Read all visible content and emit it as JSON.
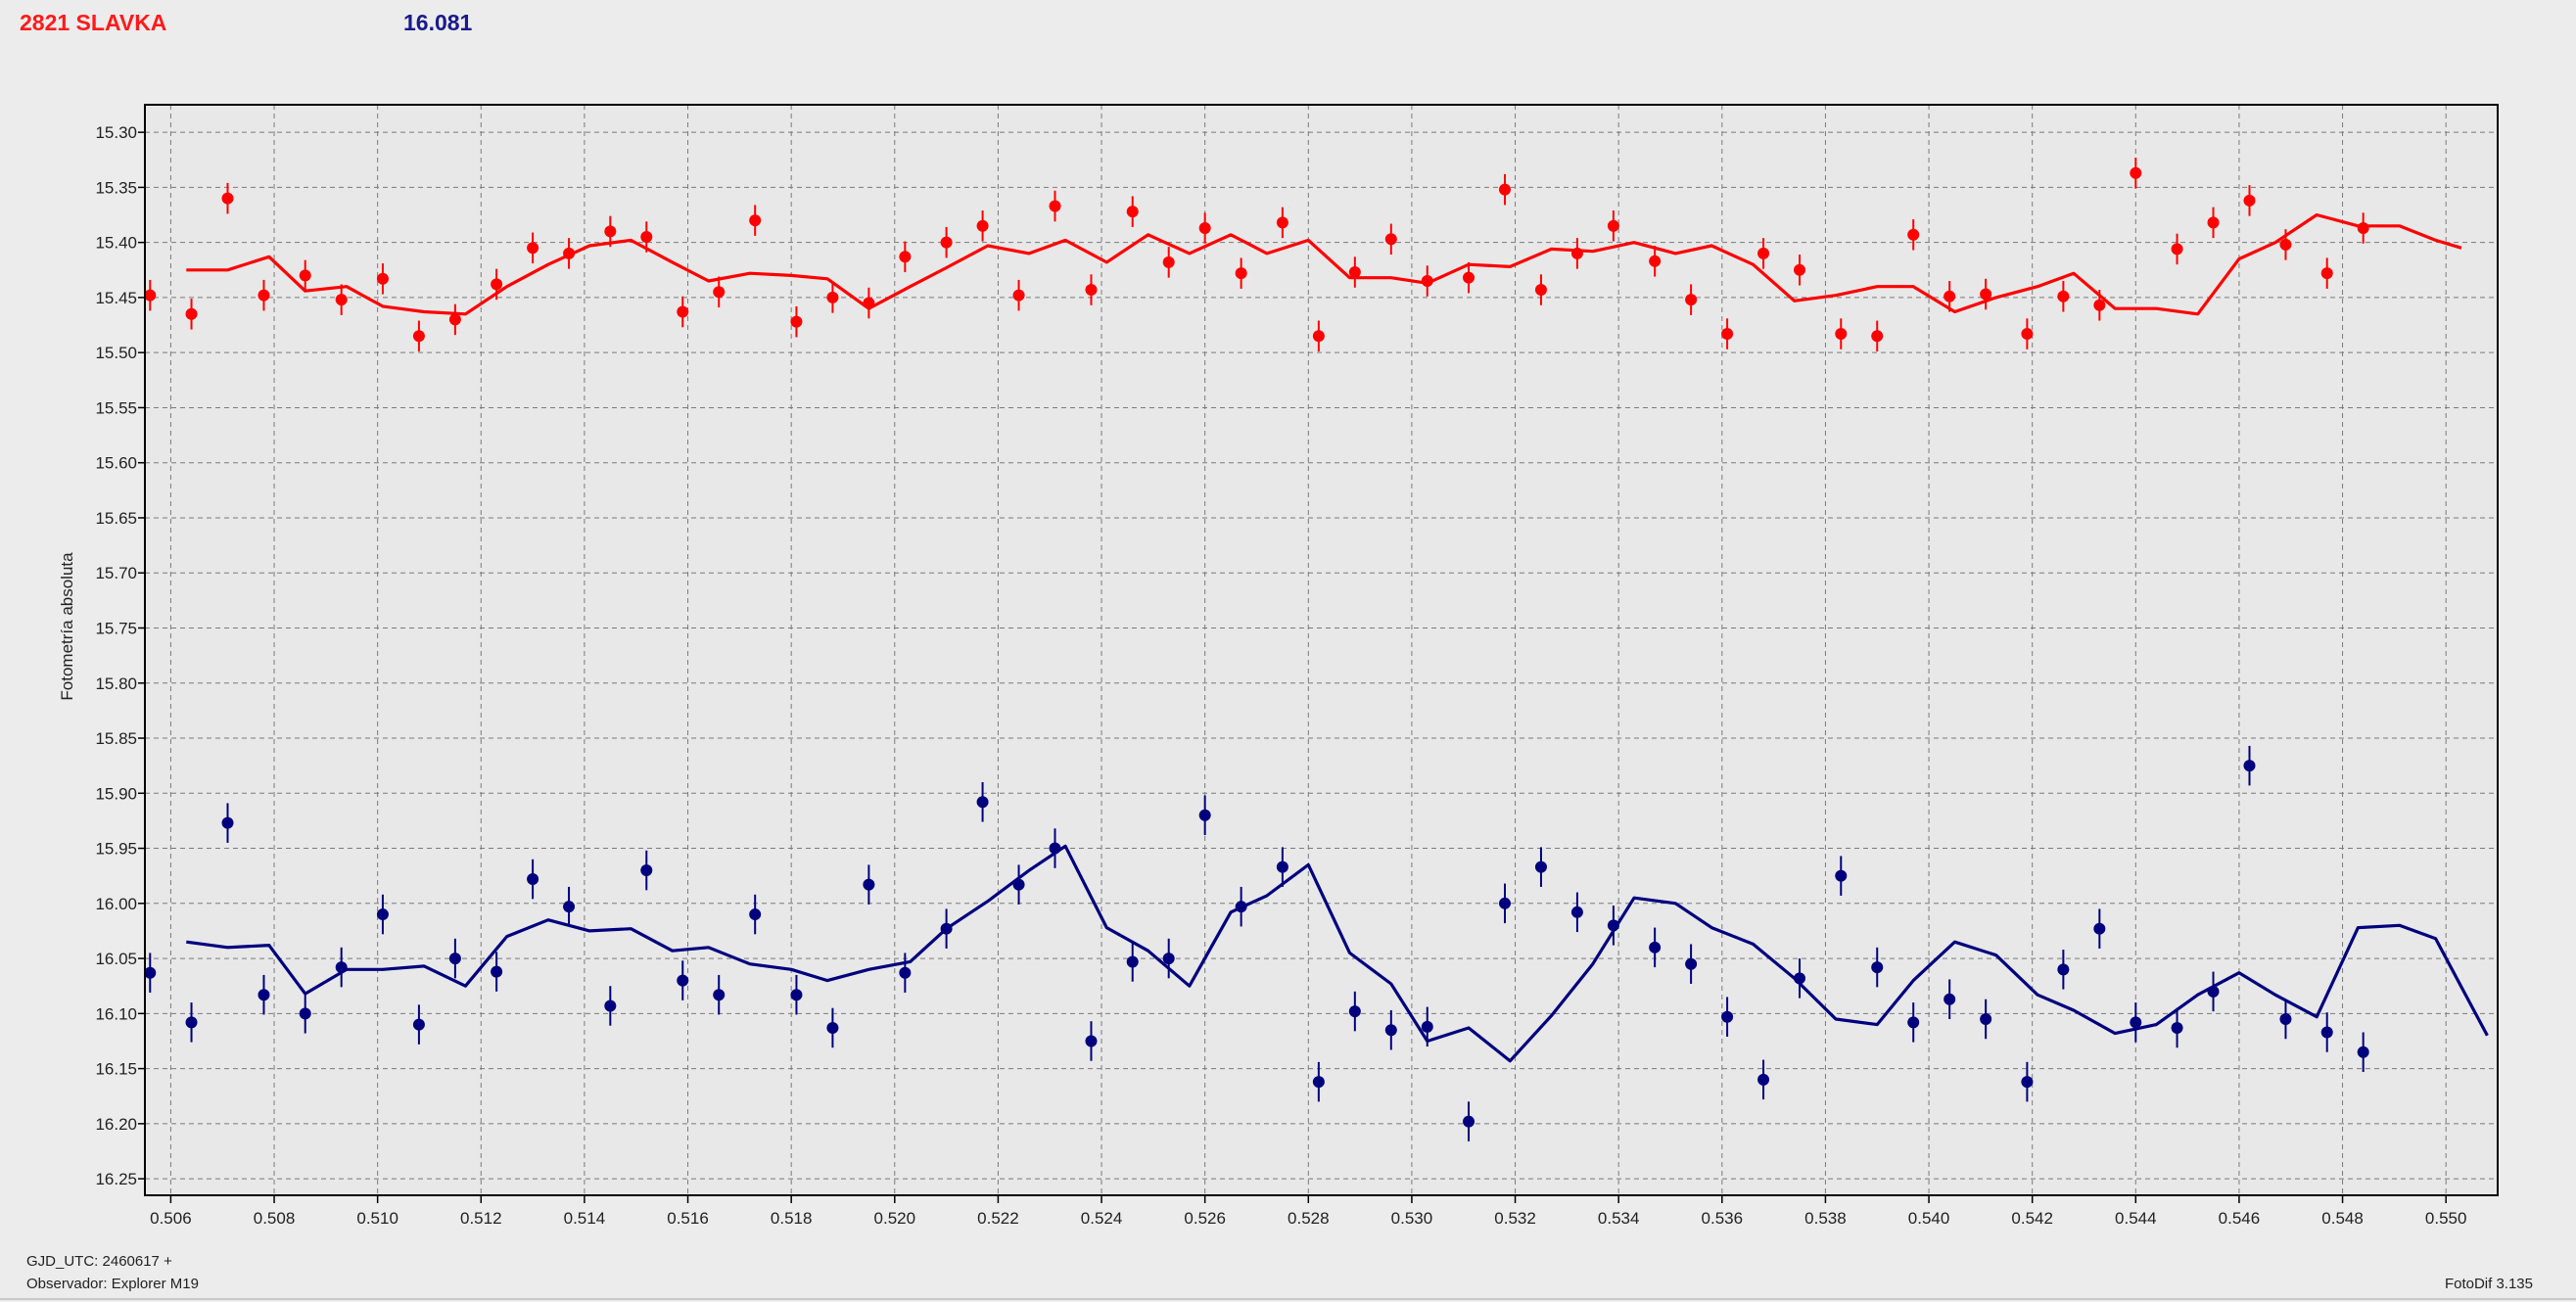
{
  "header": {
    "object_name": "2821 SLAVKA",
    "magnitude": "16.081"
  },
  "footer": {
    "gjd_label": "GJD_UTC: 2460617 +",
    "observer_label": "Observador: Explorer M19",
    "software_label": "FotoDif 3.135"
  },
  "colors": {
    "red_series": "#ff0000",
    "blue_series": "#00007f",
    "grid": "#7a7a7a",
    "plot_background": "#e8e8e8"
  },
  "chart_data": {
    "type": "scatter",
    "ylabel": "Fotometría absoluta",
    "xlabel": "",
    "xlim": [
      0.5055,
      0.551
    ],
    "ylim": [
      15.275,
      16.265
    ],
    "y_inverted": true,
    "grid": true,
    "x_ticks": [
      "0.506",
      "0.508",
      "0.510",
      "0.512",
      "0.514",
      "0.516",
      "0.518",
      "0.520",
      "0.522",
      "0.524",
      "0.526",
      "0.528",
      "0.530",
      "0.532",
      "0.534",
      "0.536",
      "0.538",
      "0.540",
      "0.542",
      "0.544",
      "0.546",
      "0.548",
      "0.550"
    ],
    "y_ticks": [
      "15.30",
      "15.35",
      "15.40",
      "15.45",
      "15.50",
      "15.55",
      "15.60",
      "15.65",
      "15.70",
      "15.75",
      "15.80",
      "15.85",
      "15.90",
      "15.95",
      "16.00",
      "16.05",
      "16.10",
      "16.15",
      "16.20",
      "16.25"
    ],
    "series": [
      {
        "color": "#ff0000",
        "error": 0.014,
        "points": [
          [
            0.5056,
            15.448
          ],
          [
            0.5064,
            15.465
          ],
          [
            0.5071,
            15.36
          ],
          [
            0.5078,
            15.448
          ],
          [
            0.5086,
            15.43
          ],
          [
            0.5093,
            15.452
          ],
          [
            0.5101,
            15.433
          ],
          [
            0.5108,
            15.485
          ],
          [
            0.5115,
            15.47
          ],
          [
            0.5123,
            15.438
          ],
          [
            0.513,
            15.405
          ],
          [
            0.5137,
            15.41
          ],
          [
            0.5145,
            15.39
          ],
          [
            0.5152,
            15.395
          ],
          [
            0.5159,
            15.463
          ],
          [
            0.5166,
            15.445
          ],
          [
            0.5173,
            15.38
          ],
          [
            0.5181,
            15.472
          ],
          [
            0.5188,
            15.45
          ],
          [
            0.5195,
            15.455
          ],
          [
            0.5202,
            15.413
          ],
          [
            0.521,
            15.4
          ],
          [
            0.5217,
            15.385
          ],
          [
            0.5224,
            15.448
          ],
          [
            0.5231,
            15.367
          ],
          [
            0.5238,
            15.443
          ],
          [
            0.5246,
            15.372
          ],
          [
            0.5253,
            15.418
          ],
          [
            0.526,
            15.387
          ],
          [
            0.5267,
            15.428
          ],
          [
            0.5275,
            15.382
          ],
          [
            0.5282,
            15.485
          ],
          [
            0.5289,
            15.427
          ],
          [
            0.5296,
            15.397
          ],
          [
            0.5303,
            15.435
          ],
          [
            0.5311,
            15.432
          ],
          [
            0.5318,
            15.352
          ],
          [
            0.5325,
            15.443
          ],
          [
            0.5332,
            15.41
          ],
          [
            0.5339,
            15.385
          ],
          [
            0.5347,
            15.417
          ],
          [
            0.5354,
            15.452
          ],
          [
            0.5361,
            15.483
          ],
          [
            0.5368,
            15.41
          ],
          [
            0.5375,
            15.425
          ],
          [
            0.5383,
            15.483
          ],
          [
            0.539,
            15.485
          ],
          [
            0.5397,
            15.393
          ],
          [
            0.5404,
            15.449
          ],
          [
            0.5411,
            15.447
          ],
          [
            0.5419,
            15.483
          ],
          [
            0.5426,
            15.449
          ],
          [
            0.5433,
            15.457
          ],
          [
            0.544,
            15.337
          ],
          [
            0.5448,
            15.406
          ],
          [
            0.5455,
            15.382
          ],
          [
            0.5462,
            15.362
          ],
          [
            0.5469,
            15.402
          ],
          [
            0.5477,
            15.428
          ],
          [
            0.5484,
            15.387
          ]
        ],
        "line": [
          [
            0.5063,
            15.425
          ],
          [
            0.5071,
            15.425
          ],
          [
            0.5079,
            15.413
          ],
          [
            0.5086,
            15.444
          ],
          [
            0.5094,
            15.44
          ],
          [
            0.5101,
            15.458
          ],
          [
            0.5109,
            15.463
          ],
          [
            0.5117,
            15.465
          ],
          [
            0.5125,
            15.44
          ],
          [
            0.5133,
            15.42
          ],
          [
            0.5141,
            15.403
          ],
          [
            0.5149,
            15.398
          ],
          [
            0.5157,
            15.418
          ],
          [
            0.5164,
            15.435
          ],
          [
            0.5172,
            15.428
          ],
          [
            0.518,
            15.43
          ],
          [
            0.5187,
            15.433
          ],
          [
            0.5195,
            15.46
          ],
          [
            0.5203,
            15.44
          ],
          [
            0.521,
            15.423
          ],
          [
            0.5218,
            15.403
          ],
          [
            0.5226,
            15.41
          ],
          [
            0.5233,
            15.398
          ],
          [
            0.5241,
            15.418
          ],
          [
            0.5249,
            15.393
          ],
          [
            0.5257,
            15.41
          ],
          [
            0.5265,
            15.393
          ],
          [
            0.5272,
            15.41
          ],
          [
            0.528,
            15.398
          ],
          [
            0.5288,
            15.432
          ],
          [
            0.5296,
            15.432
          ],
          [
            0.5303,
            15.437
          ],
          [
            0.5311,
            15.42
          ],
          [
            0.5319,
            15.422
          ],
          [
            0.5327,
            15.406
          ],
          [
            0.5335,
            15.408
          ],
          [
            0.5343,
            15.4
          ],
          [
            0.5351,
            15.41
          ],
          [
            0.5358,
            15.403
          ],
          [
            0.5366,
            15.42
          ],
          [
            0.5374,
            15.453
          ],
          [
            0.5382,
            15.448
          ],
          [
            0.539,
            15.44
          ],
          [
            0.5397,
            15.44
          ],
          [
            0.5405,
            15.463
          ],
          [
            0.5413,
            15.45
          ],
          [
            0.5421,
            15.44
          ],
          [
            0.5428,
            15.428
          ],
          [
            0.5436,
            15.46
          ],
          [
            0.5444,
            15.46
          ],
          [
            0.5452,
            15.465
          ],
          [
            0.546,
            15.415
          ],
          [
            0.5467,
            15.4
          ],
          [
            0.5475,
            15.375
          ],
          [
            0.5483,
            15.385
          ],
          [
            0.5491,
            15.385
          ],
          [
            0.5498,
            15.398
          ],
          [
            0.5503,
            15.405
          ]
        ]
      },
      {
        "color": "#00007f",
        "error": 0.018,
        "points": [
          [
            0.5056,
            16.063
          ],
          [
            0.5064,
            16.108
          ],
          [
            0.5071,
            15.927
          ],
          [
            0.5078,
            16.083
          ],
          [
            0.5086,
            16.1
          ],
          [
            0.5093,
            16.058
          ],
          [
            0.5101,
            16.01
          ],
          [
            0.5108,
            16.11
          ],
          [
            0.5115,
            16.05
          ],
          [
            0.5123,
            16.062
          ],
          [
            0.513,
            15.978
          ],
          [
            0.5137,
            16.003
          ],
          [
            0.5145,
            16.093
          ],
          [
            0.5152,
            15.97
          ],
          [
            0.5159,
            16.07
          ],
          [
            0.5166,
            16.083
          ],
          [
            0.5173,
            16.01
          ],
          [
            0.5181,
            16.083
          ],
          [
            0.5188,
            16.113
          ],
          [
            0.5195,
            15.983
          ],
          [
            0.5202,
            16.063
          ],
          [
            0.521,
            16.023
          ],
          [
            0.5217,
            15.908
          ],
          [
            0.5224,
            15.983
          ],
          [
            0.5231,
            15.95
          ],
          [
            0.5238,
            16.125
          ],
          [
            0.5246,
            16.053
          ],
          [
            0.5253,
            16.05
          ],
          [
            0.526,
            15.92
          ],
          [
            0.5267,
            16.003
          ],
          [
            0.5275,
            15.967
          ],
          [
            0.5282,
            16.162
          ],
          [
            0.5289,
            16.098
          ],
          [
            0.5296,
            16.115
          ],
          [
            0.5303,
            16.112
          ],
          [
            0.5311,
            16.198
          ],
          [
            0.5318,
            16.0
          ],
          [
            0.5325,
            15.967
          ],
          [
            0.5332,
            16.008
          ],
          [
            0.5339,
            16.02
          ],
          [
            0.5347,
            16.04
          ],
          [
            0.5354,
            16.055
          ],
          [
            0.5361,
            16.103
          ],
          [
            0.5368,
            16.16
          ],
          [
            0.5375,
            16.068
          ],
          [
            0.5383,
            15.975
          ],
          [
            0.539,
            16.058
          ],
          [
            0.5397,
            16.108
          ],
          [
            0.5404,
            16.087
          ],
          [
            0.5411,
            16.105
          ],
          [
            0.5419,
            16.162
          ],
          [
            0.5426,
            16.06
          ],
          [
            0.5433,
            16.023
          ],
          [
            0.544,
            16.108
          ],
          [
            0.5448,
            16.113
          ],
          [
            0.5455,
            16.08
          ],
          [
            0.5462,
            15.875
          ],
          [
            0.5469,
            16.105
          ],
          [
            0.5477,
            16.117
          ],
          [
            0.5484,
            16.135
          ]
        ],
        "line": [
          [
            0.5063,
            16.035
          ],
          [
            0.5071,
            16.04
          ],
          [
            0.5079,
            16.038
          ],
          [
            0.5086,
            16.082
          ],
          [
            0.5094,
            16.06
          ],
          [
            0.5101,
            16.06
          ],
          [
            0.5109,
            16.057
          ],
          [
            0.5117,
            16.075
          ],
          [
            0.5125,
            16.03
          ],
          [
            0.5133,
            16.015
          ],
          [
            0.5141,
            16.025
          ],
          [
            0.5149,
            16.023
          ],
          [
            0.5157,
            16.043
          ],
          [
            0.5164,
            16.04
          ],
          [
            0.5172,
            16.055
          ],
          [
            0.518,
            16.06
          ],
          [
            0.5187,
            16.07
          ],
          [
            0.5195,
            16.06
          ],
          [
            0.5203,
            16.053
          ],
          [
            0.521,
            16.023
          ],
          [
            0.5218,
            15.998
          ],
          [
            0.5226,
            15.97
          ],
          [
            0.5233,
            15.948
          ],
          [
            0.5241,
            16.022
          ],
          [
            0.5249,
            16.043
          ],
          [
            0.5257,
            16.075
          ],
          [
            0.5265,
            16.008
          ],
          [
            0.5272,
            15.993
          ],
          [
            0.528,
            15.965
          ],
          [
            0.5288,
            16.045
          ],
          [
            0.5296,
            16.073
          ],
          [
            0.5303,
            16.125
          ],
          [
            0.5311,
            16.113
          ],
          [
            0.5319,
            16.143
          ],
          [
            0.5327,
            16.102
          ],
          [
            0.5335,
            16.055
          ],
          [
            0.5343,
            15.995
          ],
          [
            0.5351,
            16.0
          ],
          [
            0.5358,
            16.022
          ],
          [
            0.5366,
            16.037
          ],
          [
            0.5374,
            16.068
          ],
          [
            0.5382,
            16.105
          ],
          [
            0.539,
            16.11
          ],
          [
            0.5397,
            16.07
          ],
          [
            0.5405,
            16.035
          ],
          [
            0.5413,
            16.047
          ],
          [
            0.5421,
            16.083
          ],
          [
            0.5428,
            16.097
          ],
          [
            0.5436,
            16.118
          ],
          [
            0.5444,
            16.11
          ],
          [
            0.5452,
            16.083
          ],
          [
            0.546,
            16.063
          ],
          [
            0.5467,
            16.083
          ],
          [
            0.5475,
            16.103
          ],
          [
            0.5483,
            16.022
          ],
          [
            0.5491,
            16.02
          ],
          [
            0.5498,
            16.032
          ],
          [
            0.5508,
            16.12
          ]
        ]
      }
    ]
  }
}
